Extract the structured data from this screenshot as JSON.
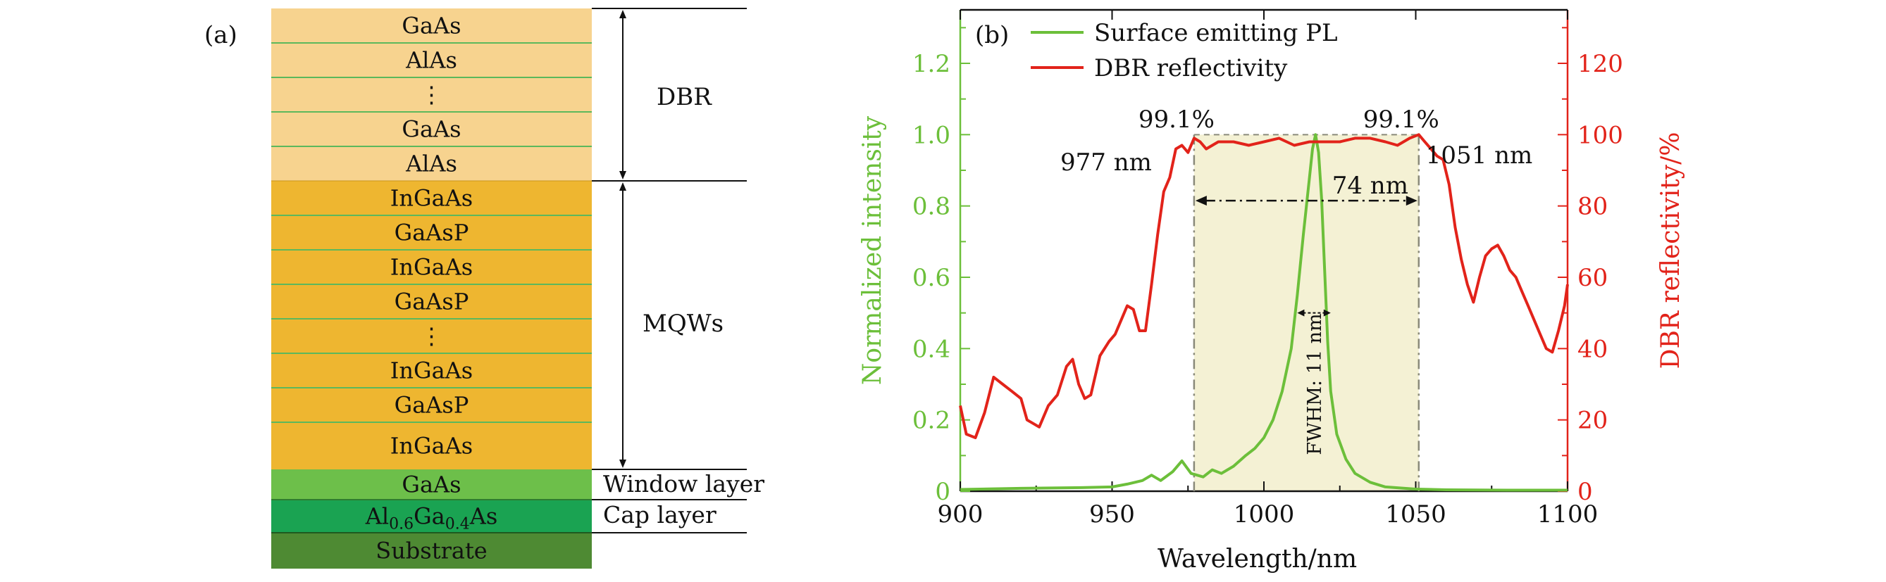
{
  "panel_a": {
    "label": "(a)",
    "layers": [
      {
        "text": "GaAs",
        "color": "#f7d38f"
      },
      {
        "text": "AlAs",
        "color": "#f7d38f"
      },
      {
        "text": "⋮",
        "color": "#f7d38f"
      },
      {
        "text": "GaAs",
        "color": "#f7d38f"
      },
      {
        "text": "AlAs",
        "color": "#f7d38f"
      },
      {
        "text": "InGaAs",
        "color": "#eeb630"
      },
      {
        "text": "GaAsP",
        "color": "#eeb630"
      },
      {
        "text": "InGaAs",
        "color": "#eeb630"
      },
      {
        "text": "GaAsP",
        "color": "#eeb630"
      },
      {
        "text": "⋮",
        "color": "#eeb630"
      },
      {
        "text": "InGaAs",
        "color": "#eeb630"
      },
      {
        "text": "GaAsP",
        "color": "#eeb630"
      },
      {
        "text": "InGaAs",
        "color": "#eeb630"
      },
      {
        "text": "GaAs",
        "color": "#6dbf4a"
      },
      {
        "text": "Al0.6Ga0.4As",
        "color": "#1aa352"
      },
      {
        "text": "Substrate",
        "color": "#4e8a33"
      }
    ],
    "cap_formula": {
      "el1": "Al",
      "sub1": "0.6",
      "el2": "Ga",
      "sub2": "0.4",
      "el3": "As"
    },
    "separator_color": "#5cb85c",
    "dbr_label": "DBR",
    "mqw_label": "MQWs",
    "window_label": "Window layer",
    "cap_label": "Cap layer"
  },
  "chart_data": {
    "type": "line",
    "panel_label": "(b)",
    "xlabel": "Wavelength/nm",
    "ylabel_left": "Normalized intensity",
    "ylabel_right": "DBR reflectivity/%",
    "xlim": [
      900,
      1100
    ],
    "ylim_left": [
      0,
      1.35
    ],
    "ylim_right": [
      0,
      135
    ],
    "xticks": [
      900,
      950,
      1000,
      1050,
      1100
    ],
    "yticks_left": [
      0,
      0.2,
      0.4,
      0.6,
      0.8,
      1.0,
      1.2
    ],
    "yticks_left_labels": [
      "0",
      "0.2",
      "0.4",
      "0.6",
      "0.8",
      "1.0",
      "1.2"
    ],
    "yticks_right": [
      0,
      20,
      40,
      60,
      80,
      100,
      120
    ],
    "colors": {
      "pl": "#6cbf3a",
      "dbr": "#e2231a",
      "band": "#f4f1d4"
    },
    "legend": [
      "Surface emitting PL",
      "DBR reflectivity"
    ],
    "series": [
      {
        "name": "Surface emitting PL",
        "axis": "left",
        "x": [
          900,
          920,
          940,
          950,
          955,
          960,
          963,
          966,
          970,
          973,
          976,
          980,
          983,
          986,
          990,
          994,
          997,
          1000,
          1003,
          1006,
          1009,
          1011,
          1013,
          1015,
          1016,
          1017,
          1018,
          1019,
          1020,
          1021,
          1022,
          1024,
          1027,
          1030,
          1035,
          1040,
          1050,
          1060,
          1080,
          1100
        ],
        "y": [
          0.005,
          0.008,
          0.01,
          0.012,
          0.02,
          0.03,
          0.045,
          0.03,
          0.055,
          0.085,
          0.05,
          0.04,
          0.06,
          0.05,
          0.07,
          0.1,
          0.12,
          0.15,
          0.2,
          0.28,
          0.4,
          0.55,
          0.72,
          0.88,
          0.96,
          1.0,
          0.95,
          0.82,
          0.62,
          0.42,
          0.28,
          0.16,
          0.09,
          0.05,
          0.025,
          0.012,
          0.006,
          0.004,
          0.003,
          0.003
        ]
      },
      {
        "name": "DBR reflectivity",
        "axis": "right",
        "x": [
          900,
          902,
          905,
          908,
          911,
          914,
          917,
          920,
          922,
          924,
          926,
          929,
          932,
          935,
          937,
          939,
          941,
          943,
          946,
          949,
          951,
          953,
          955,
          957,
          959,
          961,
          963,
          965,
          967,
          969,
          971,
          973,
          975,
          977,
          979,
          981,
          985,
          990,
          995,
          1000,
          1005,
          1010,
          1015,
          1020,
          1025,
          1030,
          1035,
          1040,
          1044,
          1048,
          1051,
          1053,
          1055,
          1057,
          1059,
          1061,
          1063,
          1065,
          1067,
          1069,
          1071,
          1073,
          1075,
          1077,
          1079,
          1081,
          1083,
          1085,
          1087,
          1089,
          1091,
          1093,
          1095,
          1097,
          1099,
          1100
        ],
        "y": [
          24,
          16,
          15,
          22,
          32,
          30,
          28,
          26,
          20,
          19,
          18,
          24,
          27,
          35,
          37,
          30,
          26,
          27,
          38,
          42,
          44,
          48,
          52,
          51,
          45,
          45,
          58,
          72,
          84,
          88,
          96,
          97,
          95,
          99,
          98,
          96,
          98,
          98,
          97,
          98,
          99,
          97,
          98,
          98,
          98,
          99,
          99,
          98,
          97,
          99,
          100,
          98,
          96,
          94,
          93,
          86,
          74,
          65,
          58,
          53,
          60,
          66,
          68,
          69,
          66,
          62,
          60,
          56,
          52,
          48,
          44,
          40,
          39,
          45,
          52,
          58
        ]
      }
    ],
    "annotations": {
      "left_peak": "99.1%",
      "right_peak": "99.1%",
      "left_edge": "977 nm",
      "right_edge": "1051 nm",
      "bandwidth": "74 nm",
      "fwhm": "FWHM: 11 nm",
      "band_start": 977,
      "band_end": 1051
    }
  }
}
